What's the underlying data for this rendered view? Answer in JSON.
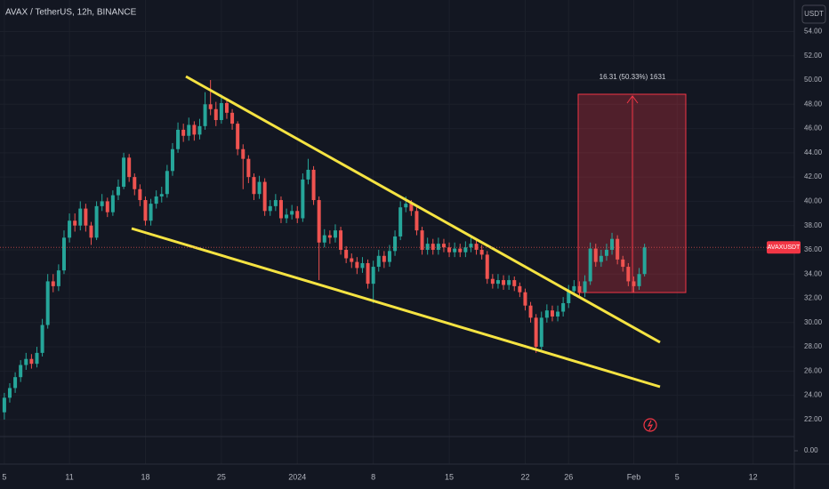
{
  "chart_data": {
    "type": "candlestick",
    "title": "AVAX / TetherUS, 12h, BINANCE",
    "currency_label": "USDT",
    "symbol_label": "AVAXUSDT",
    "annotation": "16.31 (50.33%) 1631",
    "up_color": "#26a69a",
    "down_color": "#ef5350",
    "grid": true,
    "ylim": [
      20.6,
      56.6
    ],
    "yticks": [
      {
        "value": 22,
        "label": "22.00"
      },
      {
        "value": 24,
        "label": "24.00"
      },
      {
        "value": 26,
        "label": "26.00"
      },
      {
        "value": 28,
        "label": "28.00"
      },
      {
        "value": 30,
        "label": "30.00"
      },
      {
        "value": 32,
        "label": "32.00"
      },
      {
        "value": 34,
        "label": "34.00"
      },
      {
        "value": 36,
        "label": "36.00"
      },
      {
        "value": 38,
        "label": "38.00"
      },
      {
        "value": 40,
        "label": "40.00"
      },
      {
        "value": 42,
        "label": "42.00"
      },
      {
        "value": 44,
        "label": "44.00"
      },
      {
        "value": 46,
        "label": "46.00"
      },
      {
        "value": 48,
        "label": "48.00"
      },
      {
        "value": 50,
        "label": "50.00"
      },
      {
        "value": 52,
        "label": "52.00"
      },
      {
        "value": 54,
        "label": "54.00"
      }
    ],
    "lower_pane_yticks": [
      {
        "value": 0,
        "label": "0.00"
      }
    ],
    "xlim": [
      -0.8,
      145.6
    ],
    "xticks": [
      {
        "value": 0,
        "label": "5"
      },
      {
        "value": 12,
        "label": "11"
      },
      {
        "value": 26,
        "label": "18"
      },
      {
        "value": 40,
        "label": "25"
      },
      {
        "value": 54,
        "label": "2024"
      },
      {
        "value": 68,
        "label": "8"
      },
      {
        "value": 82,
        "label": "15"
      },
      {
        "value": 96,
        "label": "22"
      },
      {
        "value": 104,
        "label": "26"
      },
      {
        "value": 116,
        "label": "Feb"
      },
      {
        "value": 124,
        "label": "5"
      },
      {
        "value": 138,
        "label": "12"
      }
    ],
    "open": [
      22.6,
      23.8,
      24.6,
      25.5,
      26.5,
      27.0,
      26.6,
      27.5,
      29.8,
      33.4,
      33.0,
      34.3,
      37.0,
      38.4,
      38.0,
      39.4,
      38.0,
      37.0,
      39.6,
      40.0,
      39.1,
      40.5,
      41.2,
      43.6,
      42.0,
      41.0,
      40.1,
      38.4,
      39.8,
      40.4,
      40.6,
      42.5,
      44.3,
      45.9,
      45.4,
      46.3,
      45.5,
      46.2,
      48.0,
      47.6,
      46.7,
      48.1,
      47.3,
      46.4,
      44.3,
      43.5,
      42.0,
      40.6,
      41.6,
      39.2,
      39.6,
      40.1,
      38.6,
      38.9,
      39.2,
      38.6,
      41.8,
      42.6,
      40.1,
      36.6,
      37.2,
      37.0,
      37.6,
      36.0,
      35.3,
      35.0,
      34.5,
      34.9,
      33.2,
      34.6,
      35.5,
      35.0,
      35.9,
      37.1,
      39.5,
      39.8,
      39.2,
      37.6,
      36.0,
      36.5,
      36.0,
      36.5,
      36.2,
      35.8,
      36.1,
      35.8,
      36.2,
      36.5,
      36.0,
      35.6,
      33.6,
      33.2,
      33.5,
      33.1,
      33.5,
      33.0,
      32.5,
      31.4,
      30.4,
      28.0,
      30.4,
      31.0,
      30.5,
      30.9,
      31.6,
      32.6,
      33.0,
      32.5,
      33.4,
      36.1,
      35.0,
      35.5,
      36.0,
      36.9,
      35.2,
      34.6,
      33.4,
      33.0,
      34.0
    ],
    "high": [
      24.2,
      25.0,
      25.9,
      26.9,
      27.5,
      27.4,
      28.0,
      30.3,
      34.0,
      34.0,
      34.8,
      37.6,
      39.0,
      39.0,
      40.0,
      39.8,
      38.3,
      40.0,
      40.6,
      40.3,
      40.9,
      41.8,
      44.0,
      43.9,
      42.3,
      41.4,
      40.4,
      40.2,
      40.9,
      41.2,
      43.0,
      44.8,
      46.5,
      46.4,
      46.9,
      46.6,
      46.8,
      49.0,
      50.0,
      48.2,
      48.8,
      48.5,
      47.6,
      46.6,
      44.7,
      43.8,
      42.3,
      42.1,
      41.9,
      40.1,
      40.6,
      40.4,
      39.4,
      39.7,
      39.6,
      42.3,
      43.5,
      42.9,
      40.4,
      37.7,
      37.6,
      38.1,
      37.9,
      36.3,
      35.7,
      35.4,
      35.4,
      35.2,
      35.1,
      36.0,
      35.9,
      36.4,
      37.6,
      40.0,
      40.4,
      40.1,
      39.5,
      37.9,
      37.0,
      36.9,
      37.0,
      36.9,
      36.6,
      36.6,
      36.5,
      36.7,
      37.0,
      36.9,
      36.4,
      35.9,
      34.0,
      34.0,
      33.9,
      33.9,
      33.8,
      33.3,
      32.8,
      31.7,
      30.7,
      30.9,
      31.5,
      31.4,
      31.4,
      32.1,
      33.1,
      33.5,
      33.4,
      33.9,
      36.6,
      36.5,
      36.0,
      36.5,
      37.4,
      37.2,
      35.5,
      34.9,
      33.8,
      34.5,
      36.5
    ],
    "low": [
      22.0,
      23.4,
      24.2,
      25.1,
      26.1,
      26.2,
      26.3,
      27.2,
      29.5,
      32.5,
      32.6,
      34.0,
      36.6,
      37.5,
      37.6,
      37.5,
      36.4,
      36.8,
      39.2,
      38.7,
      38.8,
      40.1,
      41.0,
      41.6,
      40.5,
      39.6,
      38.0,
      38.0,
      39.4,
      39.9,
      40.3,
      42.1,
      44.0,
      44.9,
      45.0,
      45.0,
      45.1,
      45.9,
      47.1,
      46.2,
      46.4,
      46.8,
      45.9,
      43.8,
      41.0,
      41.5,
      40.1,
      40.2,
      38.8,
      38.8,
      39.2,
      38.2,
      38.2,
      38.5,
      38.2,
      38.3,
      41.4,
      39.7,
      33.5,
      36.2,
      36.5,
      36.6,
      35.6,
      34.9,
      34.5,
      34.0,
      34.1,
      32.8,
      31.6,
      34.2,
      34.5,
      34.6,
      35.5,
      36.8,
      39.1,
      38.8,
      37.2,
      35.6,
      35.6,
      35.6,
      35.6,
      35.8,
      35.4,
      35.4,
      35.4,
      35.4,
      35.8,
      35.6,
      35.2,
      33.2,
      32.8,
      32.8,
      32.7,
      32.7,
      32.6,
      32.1,
      31.0,
      30.0,
      27.5,
      27.7,
      30.0,
      30.1,
      30.1,
      30.5,
      31.2,
      32.2,
      32.1,
      32.1,
      33.1,
      34.6,
      34.6,
      35.1,
      35.6,
      34.8,
      34.2,
      33.0,
      32.5,
      32.7,
      33.8
    ],
    "close": [
      23.8,
      24.6,
      25.5,
      26.5,
      27.0,
      26.6,
      27.5,
      29.8,
      33.4,
      33.0,
      34.3,
      37.0,
      38.4,
      38.0,
      39.4,
      38.0,
      37.0,
      39.6,
      40.0,
      39.1,
      40.5,
      41.2,
      43.6,
      42.0,
      41.0,
      40.1,
      38.4,
      39.8,
      40.4,
      40.6,
      42.5,
      44.3,
      45.9,
      45.4,
      46.3,
      45.5,
      46.2,
      48.0,
      47.6,
      46.7,
      48.1,
      47.3,
      46.4,
      44.3,
      43.5,
      42.0,
      40.6,
      41.6,
      39.2,
      39.6,
      40.1,
      38.6,
      38.9,
      39.2,
      38.6,
      41.8,
      42.6,
      40.1,
      36.6,
      37.2,
      37.0,
      37.6,
      36.0,
      35.3,
      35.0,
      34.5,
      34.9,
      33.2,
      34.6,
      35.5,
      35.0,
      35.9,
      37.1,
      39.5,
      39.8,
      39.2,
      37.6,
      36.0,
      36.5,
      36.0,
      36.5,
      36.2,
      35.8,
      36.1,
      35.8,
      36.2,
      36.5,
      36.0,
      35.6,
      33.6,
      33.2,
      33.5,
      33.1,
      33.5,
      33.0,
      32.5,
      31.4,
      30.4,
      28.0,
      30.4,
      31.0,
      30.5,
      30.9,
      31.6,
      32.6,
      33.0,
      32.5,
      33.4,
      36.1,
      35.0,
      35.5,
      36.0,
      36.9,
      35.2,
      34.6,
      33.4,
      33.0,
      34.0,
      36.2
    ]
  }
}
